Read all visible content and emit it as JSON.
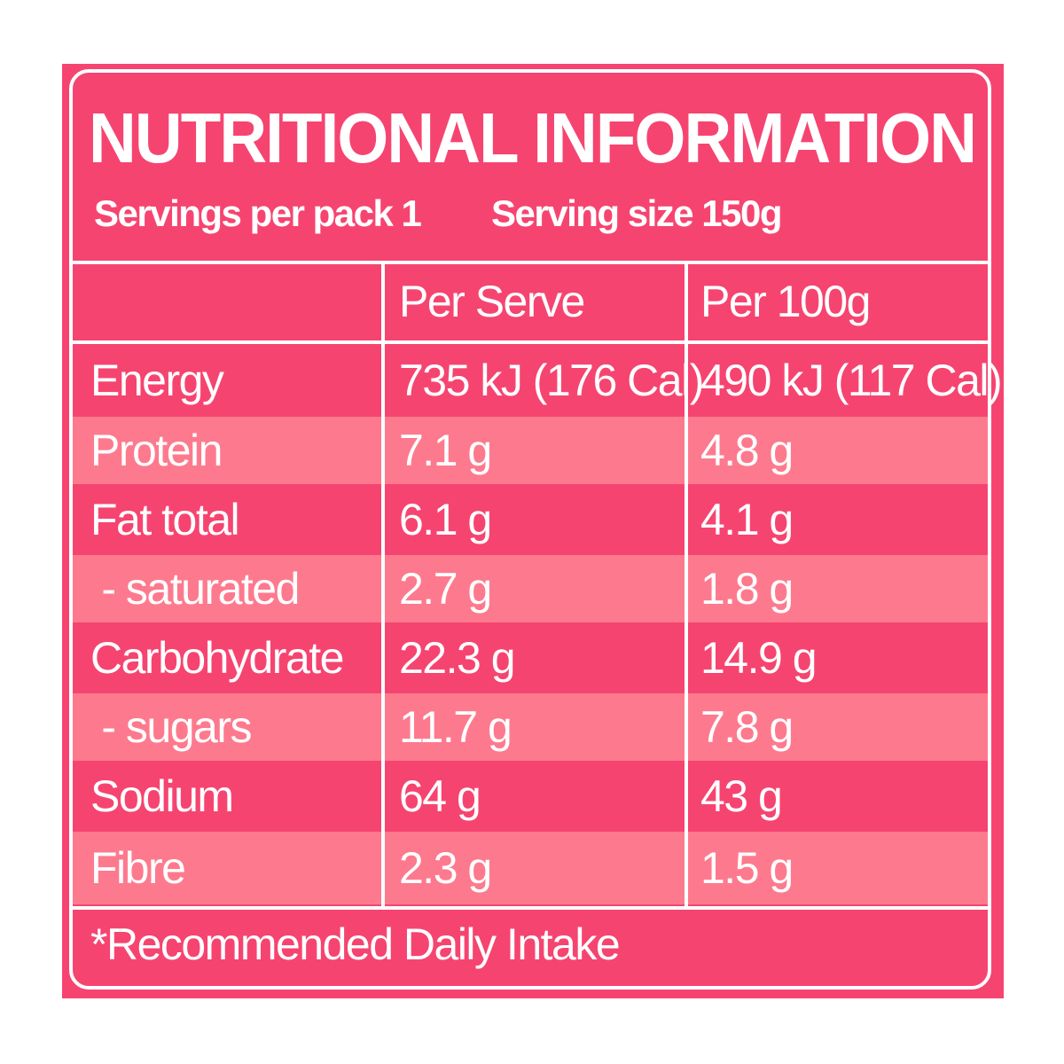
{
  "colors": {
    "panel": "#f64470",
    "row_alt": "#fd7a8e",
    "border": "#ffffff",
    "text": "#ffffff"
  },
  "label": {
    "title": "NUTRITIONAL INFORMATION",
    "servings_per_pack": "Servings per pack 1",
    "serving_size": "Serving size 150g",
    "footer": "*Recommended Daily Intake"
  },
  "table": {
    "columns": [
      "",
      "Per Serve",
      "Per 100g"
    ],
    "rows": [
      {
        "nutrient": "Energy",
        "per_serve": "735 kJ (176 Cal)",
        "per_100g": "490 kJ (117 Cal)"
      },
      {
        "nutrient": "Protein",
        "per_serve": "7.1 g",
        "per_100g": "4.8 g"
      },
      {
        "nutrient": "Fat total",
        "per_serve": "6.1 g",
        "per_100g": "4.1 g"
      },
      {
        "nutrient": " - saturated",
        "per_serve": "2.7 g",
        "per_100g": "1.8 g"
      },
      {
        "nutrient": "Carbohydrate",
        "per_serve": "22.3 g",
        "per_100g": "14.9 g"
      },
      {
        "nutrient": " - sugars",
        "per_serve": "11.7 g",
        "per_100g": "7.8 g"
      },
      {
        "nutrient": "Sodium",
        "per_serve": "64 g",
        "per_100g": "43 g"
      },
      {
        "nutrient": "Fibre",
        "per_serve": "2.3 g",
        "per_100g": "1.5 g"
      }
    ]
  }
}
